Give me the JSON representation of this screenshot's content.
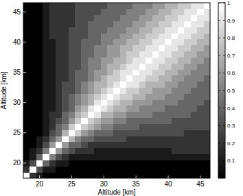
{
  "chart_data": {
    "type": "heatmap",
    "xlabel": "Altitude [km]",
    "ylabel": "Altitude [km]",
    "x": [
      18,
      19,
      20,
      21,
      22,
      23,
      24,
      25,
      26,
      27,
      28,
      29,
      30,
      31,
      32,
      33,
      34,
      35,
      36,
      37,
      38,
      39,
      40,
      41,
      42,
      43,
      44,
      45,
      46
    ],
    "y": [
      18,
      19,
      20,
      21,
      22,
      23,
      24,
      25,
      26,
      27,
      28,
      29,
      30,
      31,
      32,
      33,
      34,
      35,
      36,
      37,
      38,
      39,
      40,
      41,
      42,
      43,
      44,
      45,
      46
    ],
    "xlim": [
      17.5,
      46.5
    ],
    "ylim": [
      17.5,
      46.5
    ],
    "xticks": [
      20,
      25,
      30,
      35,
      40,
      45
    ],
    "yticks": [
      20,
      25,
      30,
      35,
      40,
      45
    ],
    "color": "gray",
    "colorbar_range": [
      0,
      1
    ],
    "colorbar_ticks": [
      0.1,
      0.2,
      0.3,
      0.4,
      0.5,
      0.6,
      0.7,
      0.8,
      0.9,
      1
    ],
    "cells": [
      [
        1,
        0.2,
        0.1,
        0,
        0,
        0,
        0,
        0,
        0,
        0,
        0,
        0,
        0,
        0,
        0,
        0,
        0,
        0,
        0,
        0,
        0,
        0,
        0,
        0,
        0,
        0,
        0,
        0,
        0
      ],
      [
        0.2,
        1,
        0.3,
        0.1,
        0.1,
        0,
        0,
        0,
        0,
        0,
        0,
        0,
        0,
        0,
        0,
        0,
        0,
        0,
        0,
        0,
        0,
        0,
        0,
        0,
        0,
        0,
        0,
        0,
        0
      ],
      [
        0.1,
        0.3,
        1,
        0.4,
        0.2,
        0.1,
        0.1,
        0,
        0,
        0,
        0,
        0,
        0,
        0,
        0,
        0,
        0,
        0,
        0,
        0,
        0,
        0,
        0,
        0,
        0,
        0,
        0,
        0,
        0
      ],
      [
        0,
        0.1,
        0.4,
        1,
        0.5,
        0.3,
        0.2,
        0.1,
        0.1,
        0.1,
        0.1,
        0.1,
        0.1,
        0.1,
        0.1,
        0.1,
        0.1,
        0.1,
        0.1,
        0.1,
        0.1,
        0.1,
        0.1,
        0.1,
        0.1,
        0.1,
        0.1,
        0.1,
        0.1
      ],
      [
        0,
        0.1,
        0.2,
        0.5,
        1,
        0.6,
        0.4,
        0.3,
        0.2,
        0.2,
        0.2,
        0.1,
        0.1,
        0.1,
        0.1,
        0.1,
        0.1,
        0.1,
        0.1,
        0.1,
        0.1,
        0.1,
        0.1,
        0.2,
        0.2,
        0.2,
        0.2,
        0.2,
        0.2
      ],
      [
        0,
        0,
        0.1,
        0.3,
        0.6,
        1,
        0.6,
        0.4,
        0.4,
        0.3,
        0.2,
        0.2,
        0.2,
        0.2,
        0.2,
        0.2,
        0.2,
        0.2,
        0.2,
        0.2,
        0.2,
        0.2,
        0.2,
        0.2,
        0.2,
        0.2,
        0.2,
        0.2,
        0.2
      ],
      [
        0,
        0,
        0.1,
        0.2,
        0.4,
        0.6,
        1,
        0.7,
        0.5,
        0.4,
        0.4,
        0.3,
        0.3,
        0.3,
        0.3,
        0.3,
        0.2,
        0.2,
        0.2,
        0.2,
        0.2,
        0.2,
        0.2,
        0.2,
        0.2,
        0.2,
        0.2,
        0.2,
        0.2
      ],
      [
        0,
        0,
        0,
        0.1,
        0.3,
        0.4,
        0.7,
        1,
        0.8,
        0.6,
        0.5,
        0.4,
        0.4,
        0.4,
        0.3,
        0.3,
        0.3,
        0.3,
        0.3,
        0.3,
        0.3,
        0.3,
        0.3,
        0.3,
        0.3,
        0.2,
        0.2,
        0.2,
        0.2
      ],
      [
        0,
        0,
        0,
        0.1,
        0.2,
        0.4,
        0.5,
        0.8,
        1,
        0.8,
        0.7,
        0.6,
        0.5,
        0.5,
        0.4,
        0.4,
        0.4,
        0.4,
        0.3,
        0.3,
        0.3,
        0.3,
        0.3,
        0.3,
        0.3,
        0.3,
        0.3,
        0.3,
        0.3
      ],
      [
        0,
        0,
        0,
        0.1,
        0.2,
        0.3,
        0.4,
        0.6,
        0.8,
        1,
        0.8,
        0.7,
        0.6,
        0.6,
        0.5,
        0.5,
        0.4,
        0.4,
        0.4,
        0.4,
        0.4,
        0.4,
        0.4,
        0.3,
        0.3,
        0.3,
        0.3,
        0.3,
        0.3
      ],
      [
        0,
        0,
        0,
        0.1,
        0.2,
        0.2,
        0.4,
        0.5,
        0.7,
        0.8,
        1,
        0.9,
        0.7,
        0.7,
        0.6,
        0.6,
        0.5,
        0.5,
        0.5,
        0.5,
        0.4,
        0.4,
        0.4,
        0.4,
        0.4,
        0.4,
        0.3,
        0.3,
        0.3
      ],
      [
        0,
        0,
        0,
        0.1,
        0.1,
        0.2,
        0.3,
        0.4,
        0.6,
        0.7,
        0.9,
        1,
        0.9,
        0.8,
        0.7,
        0.7,
        0.6,
        0.6,
        0.5,
        0.5,
        0.5,
        0.5,
        0.4,
        0.4,
        0.4,
        0.4,
        0.4,
        0.3,
        0.3
      ],
      [
        0,
        0,
        0,
        0.1,
        0.1,
        0.2,
        0.3,
        0.4,
        0.5,
        0.6,
        0.7,
        0.9,
        1,
        0.9,
        0.8,
        0.7,
        0.7,
        0.6,
        0.6,
        0.6,
        0.5,
        0.5,
        0.5,
        0.5,
        0.4,
        0.4,
        0.4,
        0.4,
        0.3
      ],
      [
        0,
        0,
        0,
        0.1,
        0.1,
        0.2,
        0.3,
        0.4,
        0.5,
        0.6,
        0.7,
        0.8,
        0.9,
        1,
        0.9,
        0.8,
        0.8,
        0.7,
        0.7,
        0.6,
        0.6,
        0.6,
        0.5,
        0.5,
        0.5,
        0.4,
        0.4,
        0.4,
        0.4
      ],
      [
        0,
        0,
        0,
        0.1,
        0.1,
        0.2,
        0.3,
        0.3,
        0.4,
        0.5,
        0.6,
        0.7,
        0.8,
        0.9,
        1,
        0.9,
        0.8,
        0.8,
        0.7,
        0.7,
        0.6,
        0.6,
        0.6,
        0.5,
        0.5,
        0.5,
        0.4,
        0.4,
        0.4
      ],
      [
        0,
        0,
        0,
        0.1,
        0.1,
        0.2,
        0.3,
        0.3,
        0.4,
        0.5,
        0.6,
        0.7,
        0.7,
        0.8,
        0.9,
        1,
        0.9,
        0.9,
        0.8,
        0.7,
        0.7,
        0.7,
        0.6,
        0.6,
        0.5,
        0.5,
        0.5,
        0.4,
        0.4
      ],
      [
        0,
        0,
        0,
        0.1,
        0.1,
        0.2,
        0.2,
        0.3,
        0.4,
        0.4,
        0.5,
        0.6,
        0.7,
        0.8,
        0.8,
        0.9,
        1,
        0.9,
        0.9,
        0.8,
        0.8,
        0.7,
        0.7,
        0.6,
        0.6,
        0.5,
        0.5,
        0.5,
        0.4
      ],
      [
        0,
        0,
        0,
        0.1,
        0.1,
        0.2,
        0.2,
        0.3,
        0.4,
        0.4,
        0.5,
        0.6,
        0.6,
        0.7,
        0.8,
        0.9,
        0.9,
        1,
        0.9,
        0.9,
        0.8,
        0.8,
        0.7,
        0.7,
        0.6,
        0.6,
        0.5,
        0.5,
        0.5
      ],
      [
        0,
        0,
        0,
        0.1,
        0.1,
        0.2,
        0.2,
        0.3,
        0.3,
        0.4,
        0.5,
        0.5,
        0.6,
        0.7,
        0.7,
        0.8,
        0.9,
        0.9,
        1,
        0.9,
        0.9,
        0.8,
        0.8,
        0.7,
        0.7,
        0.6,
        0.6,
        0.5,
        0.5
      ],
      [
        0,
        0,
        0,
        0.1,
        0.1,
        0.2,
        0.2,
        0.3,
        0.3,
        0.4,
        0.5,
        0.5,
        0.6,
        0.6,
        0.7,
        0.7,
        0.8,
        0.9,
        0.9,
        1,
        0.9,
        0.9,
        0.8,
        0.8,
        0.7,
        0.7,
        0.6,
        0.6,
        0.5
      ],
      [
        0,
        0,
        0,
        0.1,
        0.1,
        0.2,
        0.2,
        0.3,
        0.3,
        0.4,
        0.4,
        0.5,
        0.5,
        0.6,
        0.6,
        0.7,
        0.8,
        0.8,
        0.9,
        0.9,
        1,
        0.9,
        0.9,
        0.8,
        0.8,
        0.7,
        0.7,
        0.6,
        0.6
      ],
      [
        0,
        0,
        0,
        0.1,
        0.1,
        0.2,
        0.2,
        0.3,
        0.3,
        0.4,
        0.4,
        0.5,
        0.5,
        0.6,
        0.6,
        0.7,
        0.7,
        0.8,
        0.8,
        0.9,
        0.9,
        1,
        0.9,
        0.9,
        0.8,
        0.8,
        0.7,
        0.7,
        0.6
      ],
      [
        0,
        0,
        0,
        0.1,
        0.1,
        0.2,
        0.2,
        0.3,
        0.3,
        0.4,
        0.4,
        0.4,
        0.5,
        0.5,
        0.6,
        0.6,
        0.7,
        0.7,
        0.8,
        0.8,
        0.9,
        0.9,
        1,
        0.9,
        0.9,
        0.8,
        0.8,
        0.7,
        0.7
      ],
      [
        0,
        0,
        0,
        0.1,
        0.2,
        0.2,
        0.2,
        0.3,
        0.3,
        0.3,
        0.4,
        0.4,
        0.5,
        0.5,
        0.5,
        0.6,
        0.6,
        0.7,
        0.7,
        0.8,
        0.8,
        0.9,
        0.9,
        1,
        0.9,
        0.9,
        0.8,
        0.8,
        0.7
      ],
      [
        0,
        0,
        0,
        0.1,
        0.2,
        0.2,
        0.2,
        0.3,
        0.3,
        0.3,
        0.4,
        0.4,
        0.4,
        0.5,
        0.5,
        0.5,
        0.6,
        0.6,
        0.7,
        0.7,
        0.8,
        0.8,
        0.9,
        0.9,
        1,
        0.9,
        0.9,
        0.8,
        0.8
      ],
      [
        0,
        0,
        0,
        0.1,
        0.2,
        0.2,
        0.2,
        0.2,
        0.3,
        0.3,
        0.4,
        0.4,
        0.4,
        0.4,
        0.5,
        0.5,
        0.5,
        0.6,
        0.6,
        0.7,
        0.7,
        0.8,
        0.8,
        0.9,
        0.9,
        1,
        0.9,
        0.9,
        0.8
      ],
      [
        0,
        0,
        0,
        0.1,
        0.2,
        0.2,
        0.2,
        0.2,
        0.3,
        0.3,
        0.3,
        0.4,
        0.4,
        0.4,
        0.4,
        0.5,
        0.5,
        0.5,
        0.6,
        0.6,
        0.7,
        0.7,
        0.8,
        0.8,
        0.9,
        0.9,
        1,
        0.9,
        0.9
      ],
      [
        0,
        0,
        0,
        0.1,
        0.2,
        0.2,
        0.2,
        0.2,
        0.3,
        0.3,
        0.3,
        0.3,
        0.4,
        0.4,
        0.4,
        0.4,
        0.5,
        0.5,
        0.5,
        0.6,
        0.6,
        0.7,
        0.7,
        0.8,
        0.8,
        0.9,
        0.9,
        1,
        0.9
      ],
      [
        0,
        0,
        0,
        0.1,
        0.2,
        0.2,
        0.2,
        0.2,
        0.3,
        0.3,
        0.3,
        0.3,
        0.3,
        0.4,
        0.4,
        0.4,
        0.4,
        0.5,
        0.5,
        0.5,
        0.6,
        0.6,
        0.7,
        0.7,
        0.8,
        0.8,
        0.9,
        0.9,
        1
      ]
    ]
  }
}
